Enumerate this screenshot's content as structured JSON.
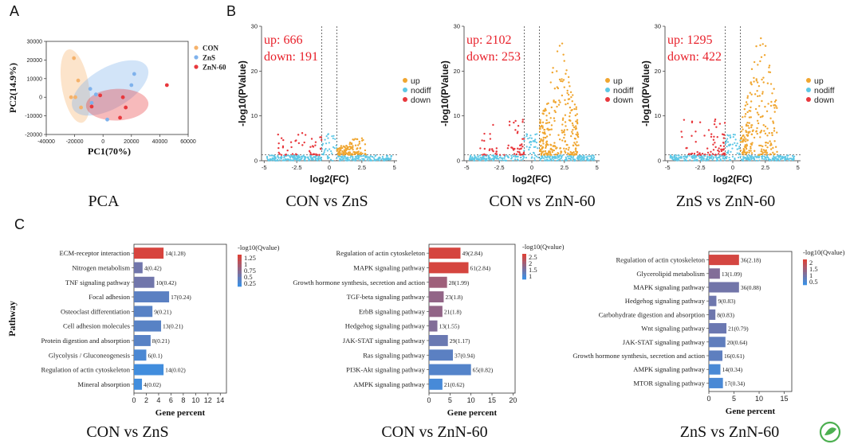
{
  "panel_labels": [
    "A",
    "B",
    "C"
  ],
  "captions": {
    "pca": "PCA",
    "volcano": [
      "CON vs ZnS",
      "CON vs ZnN-60",
      "ZnS vs ZnN-60"
    ],
    "kegg": [
      "CON vs ZnS",
      "CON vs ZnN-60",
      "ZnS vs ZnN-60"
    ]
  },
  "colors": {
    "con": "#f5b26b",
    "zns": "#7fb2ec",
    "znn60": "#e8383d",
    "up": "#f0a630",
    "nodiff": "#5ec8e6",
    "down": "#e8383d",
    "bar_high": "#d9433b",
    "bar_low": "#3f8ee0",
    "logo": "#4caf50"
  },
  "chart_data": [
    {
      "type": "scatter",
      "name": "PCA",
      "xlabel": "PC1(70%)",
      "ylabel": "PC2(14.9%)",
      "xlim": [
        -40000,
        60000
      ],
      "ylim": [
        -20000,
        30000
      ],
      "xticks": [
        "-40000",
        "-20000",
        "0",
        "20000",
        "40000",
        "60000"
      ],
      "yticks": [
        "-20000",
        "-10000",
        "0",
        "10000",
        "20000",
        "30000"
      ],
      "legend": [
        "CON",
        "ZnS",
        "ZnN-60"
      ],
      "legend_position": "top-right",
      "series": [
        {
          "name": "CON",
          "points": [
            [
              -20500,
              21000
            ],
            [
              -17500,
              9000
            ],
            [
              -22500,
              0
            ],
            [
              -19500,
              0
            ],
            [
              -15500,
              -5500
            ]
          ]
        },
        {
          "name": "ZnS",
          "points": [
            [
              -9000,
              4500
            ],
            [
              -8000,
              -3000
            ],
            [
              -5000,
              1500
            ],
            [
              3000,
              -12000
            ],
            [
              20000,
              6500
            ],
            [
              22000,
              12500
            ]
          ]
        },
        {
          "name": "ZnN-60",
          "points": [
            [
              -8000,
              -5000
            ],
            [
              -2000,
              1000
            ],
            [
              14000,
              0
            ],
            [
              16000,
              -5500
            ],
            [
              12000,
              -11000
            ],
            [
              45000,
              6500
            ]
          ]
        }
      ]
    },
    {
      "type": "scatter",
      "name": "CON vs ZnS",
      "xlabel": "log2(FC)",
      "ylabel": "-log10(PValue)",
      "xlim": [
        -5.2,
        5.2
      ],
      "ylim": [
        0,
        30
      ],
      "xticks": [
        "-5",
        "-2.5",
        "0",
        "2.5",
        "5"
      ],
      "yticks": [
        "0",
        "10",
        "20",
        "30"
      ],
      "annotations": [
        "up: 666",
        "down: 191"
      ],
      "legend": [
        "up",
        "nodiff",
        "down"
      ],
      "up": 666,
      "down": 191,
      "up_spread": 2.2,
      "up_max_y": 4
    },
    {
      "type": "scatter",
      "name": "CON vs ZnN-60",
      "xlabel": "log2(FC)",
      "ylabel": "-log10(PValue)",
      "xlim": [
        -5.2,
        5.2
      ],
      "ylim": [
        0,
        30
      ],
      "xticks": [
        "-5",
        "-2.5",
        "0",
        "2.5",
        "5"
      ],
      "yticks": [
        "0",
        "10",
        "20",
        "30"
      ],
      "annotations": [
        "up: 2102",
        "down: 253"
      ],
      "legend": [
        "up",
        "nodiff",
        "down"
      ],
      "up": 2102,
      "down": 253,
      "up_spread": 3.0,
      "up_max_y": 26
    },
    {
      "type": "scatter",
      "name": "ZnS vs ZnN-60",
      "xlabel": "log2(FC)",
      "ylabel": "-log10(PValue)",
      "xlim": [
        -5.2,
        5.2
      ],
      "ylim": [
        0,
        30
      ],
      "xticks": [
        "-5",
        "-2.5",
        "0",
        "2.5",
        "5"
      ],
      "yticks": [
        "0",
        "10",
        "20",
        "30"
      ],
      "annotations": [
        "up: 1295",
        "down: 422"
      ],
      "legend": [
        "up",
        "nodiff",
        "down"
      ],
      "up": 1295,
      "down": 422,
      "up_spread": 2.8,
      "up_max_y": 28
    },
    {
      "type": "bar",
      "orientation": "horizontal",
      "name": "CON vs ZnS",
      "xlabel": "Gene percent",
      "ylabel": "Pathway",
      "xlim": [
        0,
        15
      ],
      "xticks": [
        "0",
        "2",
        "4",
        "6",
        "8",
        "10",
        "12",
        "14"
      ],
      "legend_title": "-log10(Qvalue)",
      "legend_ticks": [
        "1.25",
        "1",
        "0.75",
        "0.5",
        "0.25"
      ],
      "qlim": [
        0,
        1.3
      ],
      "categories": [
        "ECM-receptor interaction",
        "Nitrogen metabolism",
        "TNF signaling pathway",
        "Focal adhesion",
        "Osteoclast differentiation",
        "Cell adhesion molecules",
        "Protein digestion and absorption",
        "Glycolysis / Gluconeogenesis",
        "Regulation of actin cytoskeleton",
        "Mineral absorption"
      ],
      "values": [
        4.8,
        1.4,
        3.3,
        5.7,
        3.0,
        4.4,
        2.7,
        2.0,
        4.8,
        1.3
      ],
      "qvalues": [
        1.28,
        0.42,
        0.42,
        0.24,
        0.21,
        0.21,
        0.21,
        0.1,
        0.02,
        0.02
      ],
      "labels": [
        "14(1.28)",
        "4(0.42)",
        "10(0.42)",
        "17(0.24)",
        "9(0.21)",
        "13(0.21)",
        "8(0.21)",
        "6(0.1)",
        "14(0.02)",
        "4(0.02)"
      ]
    },
    {
      "type": "bar",
      "orientation": "horizontal",
      "name": "CON vs ZnN-60",
      "xlabel": "Gene percent",
      "ylabel": "",
      "xlim": [
        0,
        20.5
      ],
      "xticks": [
        "0",
        "5",
        "10",
        "15",
        "20"
      ],
      "legend_title": "-log10(Qvalue)",
      "legend_ticks": [
        "2.5",
        "2",
        "1.5",
        "1"
      ],
      "qlim": [
        0.5,
        2.9
      ],
      "categories": [
        "Regulation of actin cytoskeleton",
        "MAPK signaling pathway",
        "Growth hormone synthesis, secretion and action",
        "TGF-beta signaling pathway",
        "ErbB signaling pathway",
        "Hedgehog signaling pathway",
        "JAK-STAT signaling pathway",
        "Ras signaling pathway",
        "PI3K-Akt signaling pathway",
        "AMPK signaling pathway"
      ],
      "values": [
        7.5,
        9.4,
        4.3,
        3.5,
        3.2,
        2.0,
        4.5,
        5.7,
        10.0,
        3.2
      ],
      "qvalues": [
        2.84,
        2.84,
        1.99,
        1.8,
        1.8,
        1.55,
        1.17,
        0.94,
        0.82,
        0.62
      ],
      "labels": [
        "49(2.84)",
        "61(2.84)",
        "28(1.99)",
        "23(1.8)",
        "21(1.8)",
        "13(1.55)",
        "29(1.17)",
        "37(0.94)",
        "65(0.82)",
        "21(0.62)"
      ]
    },
    {
      "type": "bar",
      "orientation": "horizontal",
      "name": "ZnS vs ZnN-60",
      "xlabel": "Gene percent",
      "ylabel": "",
      "xlim": [
        0,
        16.5
      ],
      "xticks": [
        "0",
        "5",
        "10",
        "15"
      ],
      "legend_title": "-log10(Qvalue)",
      "legend_ticks": [
        "2",
        "1.5",
        "1",
        "0.5"
      ],
      "qlim": [
        0.2,
        2.25
      ],
      "categories": [
        "Regulation of actin cytoskeleton",
        "Glycerolipid metabolism",
        "MAPK signaling pathway",
        "Hedgehog signaling pathway",
        "Carbohydrate digestion and absorption",
        "Wnt signaling pathway",
        "JAK-STAT signaling pathway",
        "Growth hormone synthesis, secretion and action",
        "AMPK signaling pathway",
        "MTOR signaling pathway"
      ],
      "values": [
        6.0,
        2.2,
        6.0,
        1.5,
        1.3,
        3.5,
        3.3,
        2.7,
        2.3,
        2.8
      ],
      "qvalues": [
        2.18,
        1.09,
        0.88,
        0.83,
        0.83,
        0.79,
        0.64,
        0.61,
        0.34,
        0.34
      ],
      "labels": [
        "36(2.18)",
        "13(1.09)",
        "36(0.88)",
        "9(0.83)",
        "8(0.83)",
        "21(0.79)",
        "20(0.64)",
        "16(0.61)",
        "14(0.34)",
        "17(0.34)"
      ]
    }
  ]
}
